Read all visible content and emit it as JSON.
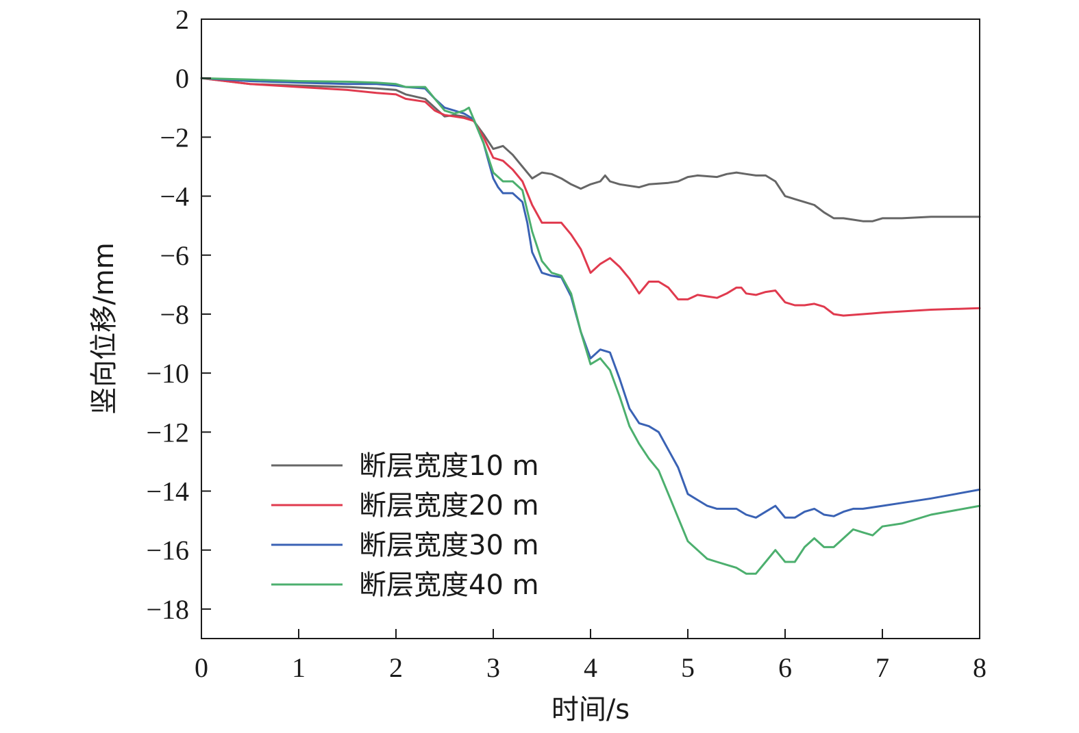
{
  "chart_data": {
    "type": "line",
    "title": "",
    "xlabel": "时间/s",
    "ylabel": "竖向位移/mm",
    "xlim": [
      0,
      8
    ],
    "ylim": [
      -19,
      2
    ],
    "xticks": [
      0,
      1,
      2,
      3,
      4,
      5,
      6,
      7,
      8
    ],
    "yticks": [
      2,
      0,
      -2,
      -4,
      -6,
      -8,
      -10,
      -12,
      -14,
      -16,
      -18
    ],
    "grid": false,
    "legend_position": "bottom-left",
    "series": [
      {
        "name": "断层宽度10 m",
        "color": "#666666",
        "x": [
          0,
          0.5,
          1,
          1.5,
          1.8,
          2,
          2.1,
          2.3,
          2.4,
          2.5,
          2.6,
          2.7,
          2.8,
          2.9,
          3,
          3.05,
          3.1,
          3.2,
          3.3,
          3.4,
          3.5,
          3.6,
          3.7,
          3.8,
          3.9,
          4,
          4.1,
          4.15,
          4.2,
          4.3,
          4.5,
          4.6,
          4.8,
          4.9,
          5,
          5.1,
          5.3,
          5.4,
          5.5,
          5.6,
          5.7,
          5.8,
          5.9,
          6,
          6.05,
          6.1,
          6.2,
          6.3,
          6.4,
          6.5,
          6.6,
          6.7,
          6.8,
          6.9,
          7,
          7.2,
          7.5,
          8
        ],
        "y": [
          0,
          -0.2,
          -0.25,
          -0.3,
          -0.35,
          -0.4,
          -0.55,
          -0.7,
          -1.0,
          -1.3,
          -1.25,
          -1.3,
          -1.45,
          -1.9,
          -2.4,
          -2.35,
          -2.3,
          -2.6,
          -3.0,
          -3.4,
          -3.2,
          -3.25,
          -3.4,
          -3.6,
          -3.75,
          -3.6,
          -3.5,
          -3.3,
          -3.5,
          -3.6,
          -3.7,
          -3.6,
          -3.55,
          -3.5,
          -3.35,
          -3.3,
          -3.35,
          -3.25,
          -3.2,
          -3.25,
          -3.3,
          -3.3,
          -3.5,
          -4.0,
          -4.05,
          -4.1,
          -4.2,
          -4.3,
          -4.55,
          -4.75,
          -4.75,
          -4.8,
          -4.85,
          -4.85,
          -4.75,
          -4.75,
          -4.7,
          -4.7
        ]
      },
      {
        "name": "断层宽度20 m",
        "color": "#e03a4e",
        "x": [
          0,
          0.5,
          1,
          1.5,
          1.8,
          2,
          2.1,
          2.3,
          2.4,
          2.5,
          2.6,
          2.7,
          2.8,
          2.9,
          3,
          3.1,
          3.2,
          3.3,
          3.4,
          3.5,
          3.6,
          3.7,
          3.8,
          3.9,
          4,
          4.1,
          4.2,
          4.3,
          4.4,
          4.5,
          4.6,
          4.7,
          4.8,
          4.9,
          5,
          5.1,
          5.2,
          5.3,
          5.4,
          5.5,
          5.55,
          5.6,
          5.7,
          5.8,
          5.9,
          6,
          6.1,
          6.2,
          6.3,
          6.4,
          6.5,
          6.6,
          6.8,
          7,
          7.5,
          8
        ],
        "y": [
          0,
          -0.2,
          -0.3,
          -0.4,
          -0.5,
          -0.55,
          -0.7,
          -0.8,
          -1.1,
          -1.25,
          -1.3,
          -1.35,
          -1.45,
          -2.0,
          -2.7,
          -2.8,
          -3.1,
          -3.5,
          -4.3,
          -4.9,
          -4.9,
          -4.9,
          -5.3,
          -5.8,
          -6.6,
          -6.3,
          -6.1,
          -6.4,
          -6.8,
          -7.3,
          -6.9,
          -6.9,
          -7.1,
          -7.5,
          -7.5,
          -7.35,
          -7.4,
          -7.45,
          -7.3,
          -7.1,
          -7.1,
          -7.3,
          -7.35,
          -7.25,
          -7.2,
          -7.6,
          -7.7,
          -7.7,
          -7.65,
          -7.75,
          -8.0,
          -8.05,
          -8.0,
          -7.95,
          -7.85,
          -7.8
        ]
      },
      {
        "name": "断层宽度30 m",
        "color": "#3a62b4",
        "x": [
          0,
          0.5,
          1,
          1.5,
          1.8,
          2,
          2.1,
          2.3,
          2.4,
          2.5,
          2.6,
          2.7,
          2.8,
          2.9,
          3,
          3.05,
          3.1,
          3.2,
          3.3,
          3.35,
          3.4,
          3.5,
          3.6,
          3.7,
          3.8,
          3.9,
          4,
          4.1,
          4.2,
          4.3,
          4.4,
          4.5,
          4.6,
          4.7,
          4.8,
          4.9,
          5,
          5.1,
          5.2,
          5.3,
          5.4,
          5.5,
          5.6,
          5.7,
          5.8,
          5.9,
          6,
          6.1,
          6.2,
          6.3,
          6.4,
          6.5,
          6.6,
          6.7,
          6.8,
          7,
          7.2,
          7.5,
          8
        ],
        "y": [
          0,
          -0.1,
          -0.15,
          -0.2,
          -0.2,
          -0.25,
          -0.3,
          -0.35,
          -0.7,
          -1.0,
          -1.1,
          -1.2,
          -1.4,
          -2.2,
          -3.4,
          -3.7,
          -3.9,
          -3.9,
          -4.2,
          -4.9,
          -5.9,
          -6.6,
          -6.7,
          -6.75,
          -7.4,
          -8.6,
          -9.5,
          -9.2,
          -9.3,
          -10.2,
          -11.2,
          -11.7,
          -11.8,
          -12.0,
          -12.6,
          -13.2,
          -14.1,
          -14.3,
          -14.5,
          -14.6,
          -14.6,
          -14.6,
          -14.8,
          -14.9,
          -14.7,
          -14.5,
          -14.9,
          -14.9,
          -14.7,
          -14.6,
          -14.8,
          -14.85,
          -14.7,
          -14.6,
          -14.6,
          -14.5,
          -14.4,
          -14.25,
          -13.95
        ]
      },
      {
        "name": "断层宽度40 m",
        "color": "#4caf6e",
        "x": [
          0,
          0.5,
          1,
          1.5,
          1.8,
          2,
          2.1,
          2.3,
          2.4,
          2.5,
          2.6,
          2.65,
          2.7,
          2.75,
          2.8,
          2.9,
          3,
          3.1,
          3.2,
          3.3,
          3.4,
          3.5,
          3.6,
          3.7,
          3.8,
          3.9,
          4,
          4.1,
          4.2,
          4.3,
          4.4,
          4.5,
          4.6,
          4.7,
          4.8,
          4.9,
          5,
          5.1,
          5.2,
          5.3,
          5.4,
          5.5,
          5.6,
          5.7,
          5.8,
          5.9,
          6,
          6.1,
          6.2,
          6.3,
          6.4,
          6.5,
          6.6,
          6.7,
          6.8,
          6.9,
          7,
          7.2,
          7.5,
          8
        ],
        "y": [
          0,
          -0.05,
          -0.1,
          -0.12,
          -0.15,
          -0.2,
          -0.3,
          -0.3,
          -0.7,
          -1.1,
          -1.2,
          -1.15,
          -1.1,
          -1.0,
          -1.4,
          -2.2,
          -3.2,
          -3.5,
          -3.5,
          -3.8,
          -5.2,
          -6.2,
          -6.6,
          -6.7,
          -7.3,
          -8.6,
          -9.7,
          -9.5,
          -9.9,
          -10.8,
          -11.8,
          -12.4,
          -12.9,
          -13.3,
          -14.1,
          -14.9,
          -15.7,
          -16.0,
          -16.3,
          -16.4,
          -16.5,
          -16.6,
          -16.8,
          -16.8,
          -16.4,
          -16.0,
          -16.4,
          -16.4,
          -15.9,
          -15.6,
          -15.9,
          -15.9,
          -15.6,
          -15.3,
          -15.4,
          -15.5,
          -15.2,
          -15.1,
          -14.8,
          -14.5
        ]
      }
    ]
  }
}
